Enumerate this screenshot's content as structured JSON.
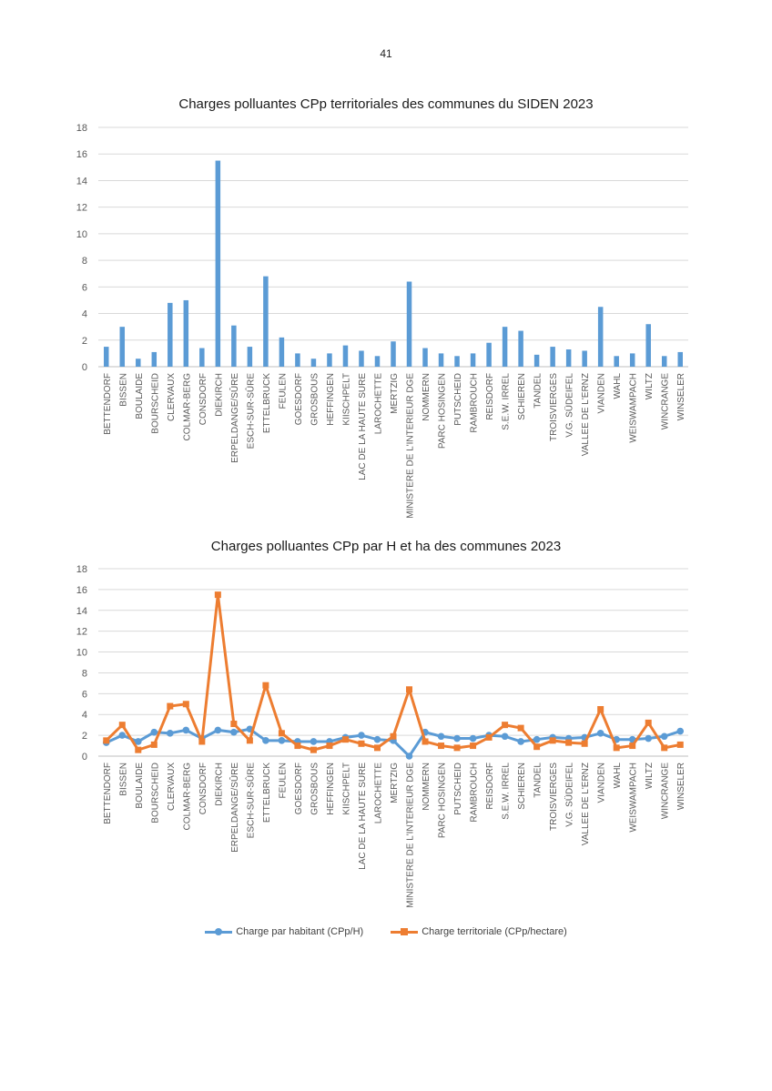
{
  "page": {
    "number": "41"
  },
  "colors": {
    "blue": "#5b9bd5",
    "orange": "#ed7d31",
    "grid": "#d9d9d9"
  },
  "chart_data": [
    {
      "type": "bar",
      "title": "Charges polluantes CPp territoriales des communes du SIDEN 2023",
      "ylim": [
        0,
        18
      ],
      "yticks": [
        0,
        2,
        4,
        6,
        8,
        10,
        12,
        14,
        16,
        18
      ],
      "grid": true,
      "categories": [
        "BETTENDORF",
        "BISSEN",
        "BOULAIDE",
        "BOURSCHEID",
        "CLERVAUX",
        "COLMAR-BERG",
        "CONSDORF",
        "DIEKIRCH",
        "ERPELDANGE/SÛRE",
        "ESCH-SUR-SÛRE",
        "ETTELBRUCK",
        "FEULEN",
        "GOESDORF",
        "GROSBOUS",
        "HEFFINGEN",
        "KIISCHPELT",
        "LAC DE LA HAUTE SURE",
        "LAROCHETTE",
        "MERTZIG",
        "MINISTERE DE L'INTERIEUR DGE",
        "NOMMERN",
        "PARC HOSINGEN",
        "PUTSCHEID",
        "RAMBROUCH",
        "REISDORF",
        "S.E.W. IRREL",
        "SCHIEREN",
        "TANDEL",
        "TROISVIERGES",
        "V.G. SÜDEIFEL",
        "VALLEE DE L'ERNZ",
        "VIANDEN",
        "WAHL",
        "WEISWAMPACH",
        "WILTZ",
        "WINCRANGE",
        "WINSELER"
      ],
      "values": [
        1.5,
        3.0,
        0.6,
        1.1,
        4.8,
        5.0,
        1.4,
        15.5,
        3.1,
        1.5,
        6.8,
        2.2,
        1.0,
        0.6,
        1.0,
        1.6,
        1.2,
        0.8,
        1.9,
        6.4,
        1.4,
        1.0,
        0.8,
        1.0,
        1.8,
        3.0,
        2.7,
        0.9,
        1.5,
        1.3,
        1.2,
        4.5,
        0.8,
        1.0,
        3.2,
        0.8,
        1.1
      ]
    },
    {
      "type": "line",
      "title": "Charges polluantes CPp par H et ha des communes 2023",
      "ylim": [
        0,
        18
      ],
      "yticks": [
        0,
        2,
        4,
        6,
        8,
        10,
        12,
        14,
        16,
        18
      ],
      "grid": true,
      "legend_position": "bottom",
      "categories": [
        "BETTENDORF",
        "BISSEN",
        "BOULAIDE",
        "BOURSCHEID",
        "CLERVAUX",
        "COLMAR-BERG",
        "CONSDORF",
        "DIEKIRCH",
        "ERPELDANGE/SÛRE",
        "ESCH-SUR-SÛRE",
        "ETTELBRUCK",
        "FEULEN",
        "GOESDORF",
        "GROSBOUS",
        "HEFFINGEN",
        "KIISCHPELT",
        "LAC DE LA HAUTE SURE",
        "LAROCHETTE",
        "MERTZIG",
        "MINISTERE DE L'INTERIEUR DGE",
        "NOMMERN",
        "PARC HOSINGEN",
        "PUTSCHEID",
        "RAMBROUCH",
        "REISDORF",
        "S.E.W. IRREL",
        "SCHIEREN",
        "TANDEL",
        "TROISVIERGES",
        "V.G. SÜDEIFEL",
        "VALLEE DE L'ERNZ",
        "VIANDEN",
        "WAHL",
        "WEISWAMPACH",
        "WILTZ",
        "WINCRANGE",
        "WINSELER"
      ],
      "series": [
        {
          "name": "Charge par habitant (CPp/H)",
          "color": "#5b9bd5",
          "marker": "circle",
          "values": [
            1.3,
            2.0,
            1.4,
            2.3,
            2.2,
            2.5,
            1.7,
            2.5,
            2.3,
            2.6,
            1.5,
            1.5,
            1.4,
            1.4,
            1.4,
            1.8,
            2.0,
            1.6,
            1.5,
            0.0,
            2.3,
            1.9,
            1.7,
            1.7,
            2.0,
            1.9,
            1.4,
            1.6,
            1.8,
            1.7,
            1.8,
            2.2,
            1.6,
            1.6,
            1.7,
            1.9,
            2.4
          ]
        },
        {
          "name": "Charge territoriale (CPp/hectare)",
          "color": "#ed7d31",
          "marker": "square",
          "values": [
            1.5,
            3.0,
            0.6,
            1.1,
            4.8,
            5.0,
            1.4,
            15.5,
            3.1,
            1.5,
            6.8,
            2.2,
            1.0,
            0.6,
            1.0,
            1.6,
            1.2,
            0.8,
            1.9,
            6.4,
            1.4,
            1.0,
            0.8,
            1.0,
            1.8,
            3.0,
            2.7,
            0.9,
            1.5,
            1.3,
            1.2,
            4.5,
            0.8,
            1.0,
            3.2,
            0.8,
            1.1
          ]
        }
      ]
    }
  ]
}
